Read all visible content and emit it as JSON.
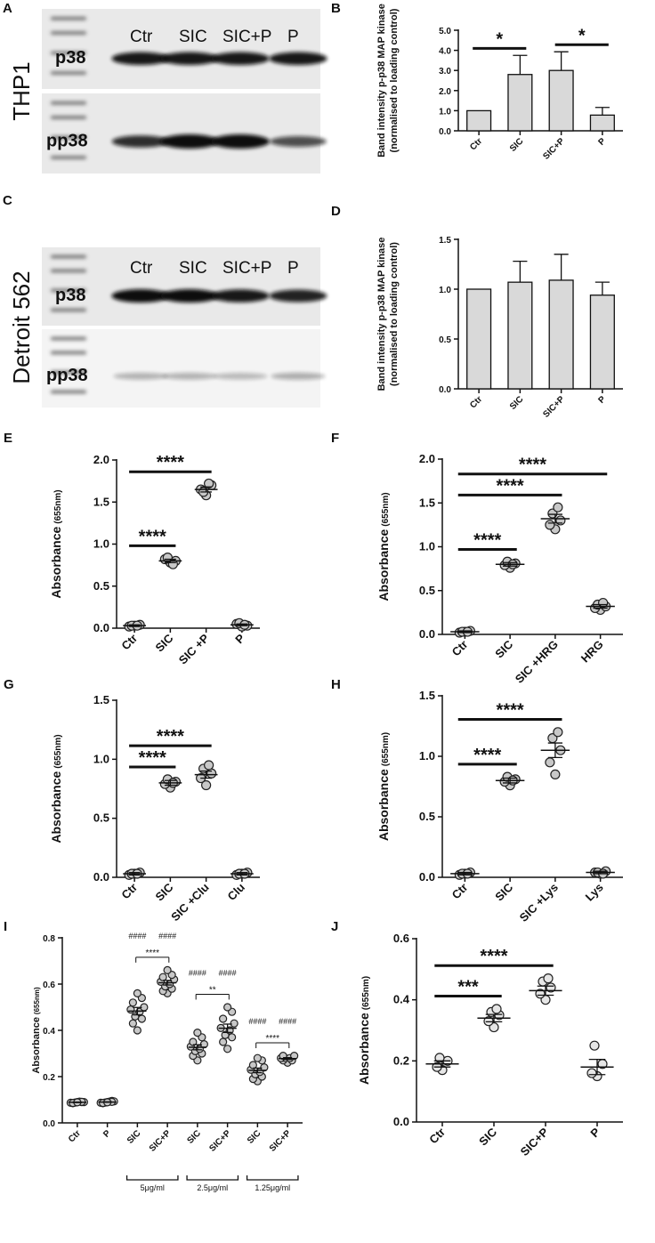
{
  "blots": [
    {
      "panel": "A",
      "cell_line": "THP1",
      "lanes": [
        "Ctr",
        "SIC",
        "SIC+P",
        "P"
      ],
      "rows": [
        "p38",
        "pp38"
      ]
    },
    {
      "panel": "C",
      "cell_line": "Detroit 562",
      "lanes": [
        "Ctr",
        "SIC",
        "SIC+P",
        "P"
      ],
      "rows": [
        "p38",
        "pp38"
      ]
    }
  ],
  "chart_data": [
    {
      "panel": "B",
      "type": "bar",
      "y_label": "Band intensity p-p38 MAP kinase",
      "y_label_2": "(normalised to loading control)",
      "categories": [
        "Ctr",
        "SIC",
        "SIC+P",
        "P"
      ],
      "values": [
        1.0,
        2.8,
        3.0,
        0.78
      ],
      "errors": [
        null,
        0.95,
        0.93,
        0.38
      ],
      "color": "#d9d9d9",
      "ylim": [
        0,
        5
      ],
      "yticks": [
        {
          "value": 0,
          "label": "0.0"
        },
        {
          "value": 1,
          "label": "1.0"
        },
        {
          "value": 2,
          "label": "2.0"
        },
        {
          "value": 3,
          "label": "3.0"
        },
        {
          "value": 4,
          "label": "4.0"
        },
        {
          "value": 5,
          "label": "5.0"
        }
      ],
      "significance": [
        {
          "from": 0,
          "to": 1,
          "label": "*"
        },
        {
          "from": 2,
          "to": 3,
          "label": "*"
        }
      ]
    },
    {
      "panel": "D",
      "type": "bar",
      "y_label": "Band intensity p-p38 MAP kinase",
      "y_label_2": "(normalised to loading control)",
      "categories": [
        "Ctr",
        "SIC",
        "SIC+P",
        "P"
      ],
      "values": [
        1.0,
        1.07,
        1.09,
        0.94
      ],
      "errors": [
        null,
        0.21,
        0.26,
        0.13
      ],
      "color": "#d9d9d9",
      "ylim": [
        0,
        1.5
      ],
      "yticks": [
        {
          "value": 0,
          "label": "0.0"
        },
        0.5,
        {
          "value": 1,
          "label": "1.0"
        },
        1.5
      ]
    },
    {
      "panel": "E",
      "type": "scatter",
      "y_label": "Absorbance",
      "y_label_unit": "(655nm)",
      "categories": [
        "Ctr",
        "SIC",
        "SIC +P",
        "P"
      ],
      "points": [
        [
          0.03,
          0.02,
          0.04,
          0.03,
          0.03
        ],
        [
          0.78,
          0.82,
          0.8,
          0.84,
          0.76
        ],
        [
          1.58,
          1.65,
          1.7,
          1.62,
          1.72
        ],
        [
          0.02,
          0.05,
          0.03,
          0.06,
          0.04
        ]
      ],
      "means": [
        0.03,
        0.8,
        1.65,
        0.04
      ],
      "errors": [
        0.01,
        0.02,
        0.03,
        0.01
      ],
      "color": "#c8c8c8",
      "ylim": [
        0,
        2
      ],
      "yticks": [
        {
          "value": 0,
          "label": "0.0"
        },
        0.5,
        {
          "value": 1,
          "label": "1.0"
        },
        1.5,
        {
          "value": 2,
          "label": "2.0"
        }
      ],
      "significance": [
        {
          "from": 0,
          "to": 1,
          "label": "****"
        },
        {
          "from": 0,
          "to": 2,
          "label": "****"
        }
      ]
    },
    {
      "panel": "F",
      "type": "scatter",
      "y_label": "Absorbance",
      "y_label_unit": "(655nm)",
      "categories": [
        "Ctr",
        "SIC",
        "SIC +HRG",
        "HRG"
      ],
      "points": [
        [
          0.03,
          0.02,
          0.04,
          0.03,
          0.03
        ],
        [
          0.76,
          0.79,
          0.81,
          0.83,
          0.8
        ],
        [
          1.2,
          1.25,
          1.3,
          1.38,
          1.45
        ],
        [
          0.28,
          0.3,
          0.32,
          0.34,
          0.36
        ]
      ],
      "means": [
        0.03,
        0.8,
        1.32,
        0.32
      ],
      "errors": [
        0.01,
        0.02,
        0.05,
        0.02
      ],
      "color": "#c8c8c8",
      "ylim": [
        0,
        2
      ],
      "yticks": [
        {
          "value": 0,
          "label": "0.0"
        },
        0.5,
        {
          "value": 1,
          "label": "1.0"
        },
        1.5,
        {
          "value": 2,
          "label": "2.0"
        }
      ],
      "significance": [
        {
          "from": 0,
          "to": 1,
          "label": "****"
        },
        {
          "from": 0,
          "to": 2,
          "label": "****"
        },
        {
          "from": 0,
          "to": 3,
          "label": "****"
        }
      ]
    },
    {
      "panel": "G",
      "type": "scatter",
      "y_label": "Absorbance",
      "y_label_unit": "(655nm)",
      "categories": [
        "Ctr",
        "SIC",
        "SIC +Clu",
        "Clu"
      ],
      "points": [
        [
          0.03,
          0.02,
          0.04,
          0.03,
          0.03
        ],
        [
          0.76,
          0.79,
          0.81,
          0.83,
          0.8
        ],
        [
          0.78,
          0.84,
          0.88,
          0.92,
          0.95
        ],
        [
          0.03,
          0.02,
          0.04,
          0.03,
          0.03
        ]
      ],
      "means": [
        0.03,
        0.8,
        0.87,
        0.03
      ],
      "errors": [
        0.01,
        0.02,
        0.03,
        0.01
      ],
      "color": "#c8c8c8",
      "ylim": [
        0,
        1.5
      ],
      "yticks": [
        {
          "value": 0,
          "label": "0.0"
        },
        0.5,
        {
          "value": 1,
          "label": "1.0"
        },
        1.5
      ],
      "significance": [
        {
          "from": 0,
          "to": 1,
          "label": "****"
        },
        {
          "from": 0,
          "to": 2,
          "label": "****"
        }
      ]
    },
    {
      "panel": "H",
      "type": "scatter",
      "y_label": "Absorbance",
      "y_label_unit": "(655nm)",
      "categories": [
        "Ctr",
        "SIC",
        "SIC +Lys",
        "Lys"
      ],
      "points": [
        [
          0.03,
          0.02,
          0.04,
          0.03,
          0.03
        ],
        [
          0.76,
          0.79,
          0.81,
          0.83,
          0.8
        ],
        [
          0.85,
          0.95,
          1.05,
          1.15,
          1.2
        ],
        [
          0.03,
          0.04,
          0.05,
          0.04,
          0.03
        ]
      ],
      "means": [
        0.03,
        0.8,
        1.05,
        0.04
      ],
      "errors": [
        0.01,
        0.02,
        0.06,
        0.01
      ],
      "color": "#c8c8c8",
      "ylim": [
        0,
        1.5
      ],
      "yticks": [
        {
          "value": 0,
          "label": "0.0"
        },
        0.5,
        {
          "value": 1,
          "label": "1.0"
        },
        1.5
      ],
      "significance": [
        {
          "from": 0,
          "to": 1,
          "label": "****"
        },
        {
          "from": 0,
          "to": 2,
          "label": "****"
        }
      ]
    },
    {
      "panel": "I",
      "type": "scatter",
      "y_label": "Absorbance",
      "y_label_unit": "(655nm)",
      "categories": [
        "Ctr",
        "P",
        "SIC",
        "SIC+P",
        "SIC",
        "SIC+P",
        "SIC",
        "SIC+P"
      ],
      "points": [
        [
          0.09,
          0.085,
          0.09,
          0.088,
          0.092,
          0.087,
          0.09,
          0.086,
          0.091,
          0.089
        ],
        [
          0.09,
          0.085,
          0.095,
          0.088,
          0.092,
          0.087,
          0.093,
          0.086,
          0.091,
          0.089
        ],
        [
          0.4,
          0.43,
          0.45,
          0.46,
          0.48,
          0.49,
          0.5,
          0.52,
          0.54,
          0.56
        ],
        [
          0.56,
          0.57,
          0.58,
          0.59,
          0.6,
          0.61,
          0.62,
          0.63,
          0.64,
          0.66
        ],
        [
          0.27,
          0.29,
          0.3,
          0.31,
          0.32,
          0.33,
          0.34,
          0.35,
          0.37,
          0.39
        ],
        [
          0.32,
          0.35,
          0.37,
          0.38,
          0.4,
          0.41,
          0.43,
          0.45,
          0.48,
          0.5
        ],
        [
          0.18,
          0.19,
          0.2,
          0.21,
          0.22,
          0.23,
          0.24,
          0.25,
          0.27,
          0.28
        ],
        [
          0.26,
          0.27,
          0.27,
          0.28,
          0.28,
          0.28,
          0.29,
          0.29
        ]
      ],
      "means": [
        0.089,
        0.09,
        0.483,
        0.606,
        0.327,
        0.409,
        0.227,
        0.278
      ],
      "errors": [
        0.001,
        0.001,
        0.016,
        0.01,
        0.011,
        0.018,
        0.01,
        0.004
      ],
      "color": "#c8c8c8",
      "ylim": [
        0,
        0.8
      ],
      "yticks": [
        {
          "value": 0,
          "label": "0.0"
        },
        0.2,
        0.4,
        0.6,
        0.8
      ],
      "significance": [
        {
          "from": 2,
          "to": 3,
          "label": "****"
        },
        {
          "from": 4,
          "to": 5,
          "label": "**"
        },
        {
          "from": 6,
          "to": 7,
          "label": "****"
        }
      ],
      "annotations": [
        {
          "category": 2,
          "label": "####"
        },
        {
          "category": 3,
          "label": "####"
        },
        {
          "category": 4,
          "label": "####"
        },
        {
          "category": 5,
          "label": "####"
        },
        {
          "category": 6,
          "label": "####"
        },
        {
          "category": 7,
          "label": "####"
        }
      ],
      "groups": [
        {
          "from": 2,
          "to": 3,
          "label": "5μg/ml"
        },
        {
          "from": 4,
          "to": 5,
          "label": "2.5μg/ml"
        },
        {
          "from": 6,
          "to": 7,
          "label": "1.25μg/ml"
        }
      ]
    },
    {
      "panel": "J",
      "type": "scatter",
      "y_label": "Absorbance",
      "y_label_unit": "(655nm)",
      "categories": [
        "Ctr",
        "SIC",
        "SIC+P",
        "P"
      ],
      "points": [
        [
          0.17,
          0.18,
          0.2,
          0.21
        ],
        [
          0.31,
          0.33,
          0.35,
          0.36,
          0.37
        ],
        [
          0.4,
          0.42,
          0.44,
          0.46,
          0.47
        ],
        [
          0.15,
          0.16,
          0.19,
          0.25
        ]
      ],
      "means": [
        0.19,
        0.34,
        0.43,
        0.18
      ],
      "errors": [
        0.01,
        0.012,
        0.015,
        0.025
      ],
      "color": "#e6e6e6",
      "ylim": [
        0,
        0.6
      ],
      "yticks": [
        {
          "value": 0,
          "label": "0.0"
        },
        0.2,
        0.4,
        0.6
      ],
      "significance": [
        {
          "from": 0,
          "to": 1,
          "label": "***"
        },
        {
          "from": 0,
          "to": 2,
          "label": "****"
        }
      ]
    }
  ]
}
